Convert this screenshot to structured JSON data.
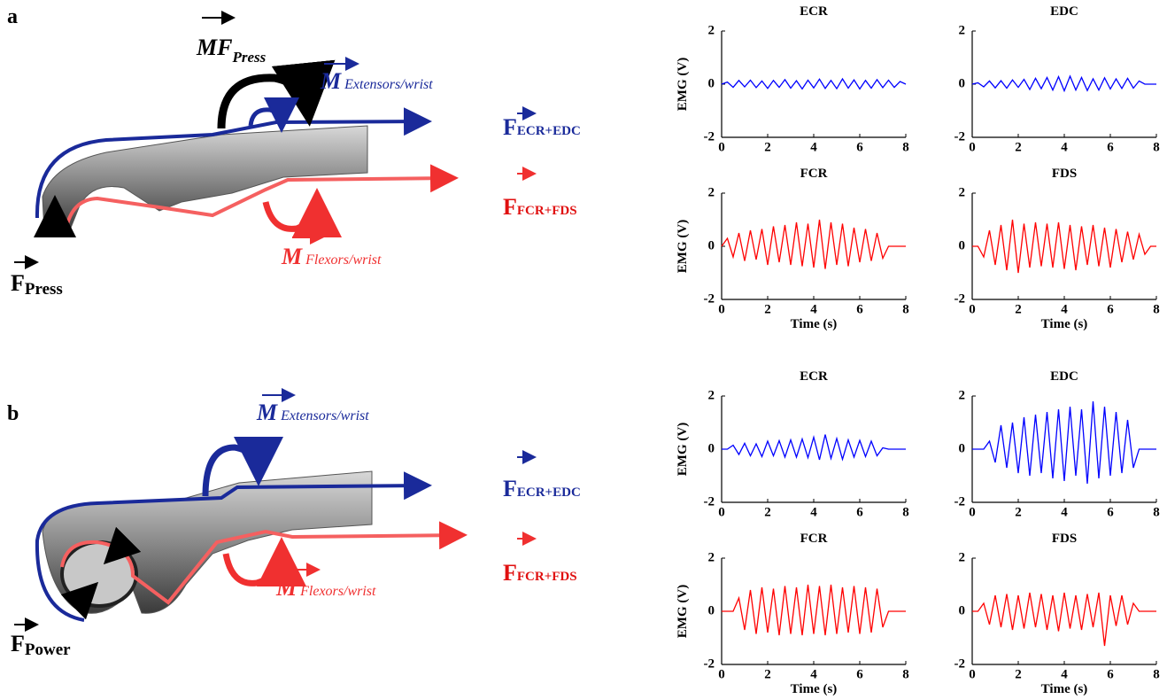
{
  "diagrams": [
    {
      "label": "a",
      "moment_main": {
        "symbol": "M",
        "subscript": "F",
        "sub_subscript": "Press"
      },
      "moment_extensors": {
        "symbol": "M",
        "subscript": "Extensors/wrist"
      },
      "force_extensors": {
        "symbol": "F",
        "subscript": "ECR+EDC"
      },
      "force_flexors": {
        "symbol": "F",
        "subscript": "FCR+FDS"
      },
      "moment_flexors": {
        "symbol": "M",
        "subscript": "Flexors/wrist"
      },
      "external_force": {
        "symbol": "F",
        "subscript": "Press"
      }
    },
    {
      "label": "b",
      "moment_extensors": {
        "symbol": "M",
        "subscript": "Extensors/wrist"
      },
      "force_extensors": {
        "symbol": "F",
        "subscript": "ECR+EDC"
      },
      "force_flexors": {
        "symbol": "F",
        "subscript": "FCR+FDS"
      },
      "moment_flexors": {
        "symbol": "M",
        "subscript": "Flexors/wrist"
      },
      "external_force": {
        "symbol": "F",
        "subscript": "Power"
      }
    }
  ],
  "chart_data": [
    {
      "type": "line",
      "title": "ECR",
      "ylabel": "EMG (V)",
      "color": "#0000ff",
      "x": [
        0,
        0.25,
        0.5,
        0.75,
        1,
        1.25,
        1.5,
        1.75,
        2,
        2.25,
        2.5,
        2.75,
        3,
        3.25,
        3.5,
        3.75,
        4,
        4.25,
        4.5,
        4.75,
        5,
        5.25,
        5.5,
        5.75,
        6,
        6.25,
        6.5,
        6.75,
        7,
        7.25,
        7.5,
        7.75,
        8
      ],
      "values": [
        0,
        0.08,
        -0.12,
        0.14,
        -0.1,
        0.15,
        -0.13,
        0.12,
        -0.16,
        0.14,
        -0.12,
        0.17,
        -0.15,
        0.13,
        -0.18,
        0.15,
        -0.14,
        0.19,
        -0.16,
        0.14,
        -0.17,
        0.2,
        -0.15,
        0.16,
        -0.18,
        0.14,
        -0.15,
        0.17,
        -0.13,
        0.15,
        -0.12,
        0.1,
        0
      ],
      "xlim": [
        0,
        8
      ],
      "ylim": [
        -2,
        2
      ],
      "xticks": [
        0,
        2,
        4,
        6,
        8
      ],
      "yticks": [
        -2,
        0,
        2
      ]
    },
    {
      "type": "line",
      "title": "EDC",
      "color": "#0000ff",
      "x": [
        0,
        0.25,
        0.5,
        0.75,
        1,
        1.25,
        1.5,
        1.75,
        2,
        2.25,
        2.5,
        2.75,
        3,
        3.25,
        3.5,
        3.75,
        4,
        4.25,
        4.5,
        4.75,
        5,
        5.25,
        5.5,
        5.75,
        6,
        6.25,
        6.5,
        6.75,
        7,
        7.25,
        7.5,
        7.75,
        8
      ],
      "values": [
        0,
        0.05,
        -0.1,
        0.12,
        -0.14,
        0.13,
        -0.15,
        0.16,
        -0.12,
        0.18,
        -0.2,
        0.22,
        -0.17,
        0.25,
        -0.22,
        0.28,
        -0.25,
        0.3,
        -0.22,
        0.25,
        -0.24,
        0.2,
        -0.22,
        0.24,
        -0.18,
        0.2,
        -0.16,
        0.22,
        -0.15,
        0.12,
        0,
        0,
        0
      ],
      "xlim": [
        0,
        8
      ],
      "ylim": [
        -2,
        2
      ],
      "xticks": [
        0,
        2,
        4,
        6,
        8
      ],
      "yticks": [
        -2,
        0,
        2
      ]
    },
    {
      "type": "line",
      "title": "FCR",
      "ylabel": "EMG (V)",
      "xlabel": "Time (s)",
      "color": "#ff0000",
      "x": [
        0,
        0.25,
        0.5,
        0.75,
        1,
        1.25,
        1.5,
        1.75,
        2,
        2.25,
        2.5,
        2.75,
        3,
        3.25,
        3.5,
        3.75,
        4,
        4.25,
        4.5,
        4.75,
        5,
        5.25,
        5.5,
        5.75,
        6,
        6.25,
        6.5,
        6.75,
        7,
        7.25,
        7.5,
        7.75,
        8
      ],
      "values": [
        0,
        0.3,
        -0.4,
        0.5,
        -0.55,
        0.6,
        -0.5,
        0.65,
        -0.7,
        0.75,
        -0.6,
        0.8,
        -0.7,
        0.9,
        -0.75,
        0.85,
        -0.8,
        1.0,
        -0.85,
        0.9,
        -0.7,
        0.85,
        -0.75,
        0.7,
        -0.6,
        0.65,
        -0.55,
        0.5,
        -0.45,
        0,
        0,
        0,
        0
      ],
      "xlim": [
        0,
        8
      ],
      "ylim": [
        -2,
        2
      ],
      "xticks": [
        0,
        2,
        4,
        6,
        8
      ],
      "yticks": [
        -2,
        0,
        2
      ]
    },
    {
      "type": "line",
      "title": "FDS",
      "xlabel": "Time (s)",
      "color": "#ff0000",
      "x": [
        0,
        0.25,
        0.5,
        0.75,
        1,
        1.25,
        1.5,
        1.75,
        2,
        2.25,
        2.5,
        2.75,
        3,
        3.25,
        3.5,
        3.75,
        4,
        4.25,
        4.5,
        4.75,
        5,
        5.25,
        5.5,
        5.75,
        6,
        6.25,
        6.5,
        6.75,
        7,
        7.25,
        7.5,
        7.75,
        8
      ],
      "values": [
        0,
        0,
        -0.4,
        0.6,
        -0.7,
        0.8,
        -0.9,
        1.0,
        -1.0,
        0.85,
        -0.8,
        0.9,
        -0.75,
        0.85,
        -0.8,
        0.9,
        -0.85,
        0.8,
        -0.9,
        0.75,
        -0.7,
        0.8,
        -0.75,
        0.7,
        -0.8,
        0.65,
        -0.6,
        0.55,
        -0.5,
        0.45,
        -0.3,
        0,
        0
      ],
      "xlim": [
        0,
        8
      ],
      "ylim": [
        -2,
        2
      ],
      "xticks": [
        0,
        2,
        4,
        6,
        8
      ],
      "yticks": [
        -2,
        0,
        2
      ]
    },
    {
      "type": "line",
      "title": "ECR",
      "ylabel": "EMG (V)",
      "color": "#0000ff",
      "x": [
        0,
        0.25,
        0.5,
        0.75,
        1,
        1.25,
        1.5,
        1.75,
        2,
        2.25,
        2.5,
        2.75,
        3,
        3.25,
        3.5,
        3.75,
        4,
        4.25,
        4.5,
        4.75,
        5,
        5.25,
        5.5,
        5.75,
        6,
        6.25,
        6.5,
        6.75,
        7,
        7.25,
        7.5,
        7.75,
        8
      ],
      "values": [
        0,
        0,
        0.15,
        -0.2,
        0.22,
        -0.25,
        0.2,
        -0.28,
        0.3,
        -0.25,
        0.32,
        -0.3,
        0.35,
        -0.3,
        0.38,
        -0.32,
        0.45,
        -0.4,
        0.55,
        -0.35,
        0.4,
        -0.38,
        0.35,
        -0.3,
        0.33,
        -0.28,
        0.3,
        -0.25,
        0.05,
        0,
        0,
        0,
        0
      ],
      "xlim": [
        0,
        8
      ],
      "ylim": [
        -2,
        2
      ],
      "xticks": [
        0,
        2,
        4,
        6,
        8
      ],
      "yticks": [
        -2,
        0,
        2
      ]
    },
    {
      "type": "line",
      "title": "EDC",
      "color": "#0000ff",
      "x": [
        0,
        0.25,
        0.5,
        0.75,
        1,
        1.25,
        1.5,
        1.75,
        2,
        2.25,
        2.5,
        2.75,
        3,
        3.25,
        3.5,
        3.75,
        4,
        4.25,
        4.5,
        4.75,
        5,
        5.25,
        5.5,
        5.75,
        6,
        6.25,
        6.5,
        6.75,
        7,
        7.25,
        7.5,
        7.75,
        8
      ],
      "values": [
        0,
        0,
        0,
        0.3,
        -0.5,
        0.9,
        -0.7,
        1.0,
        -0.9,
        1.2,
        -1.0,
        1.3,
        -0.9,
        1.4,
        -1.1,
        1.5,
        -1.2,
        1.6,
        -1.0,
        1.5,
        -1.3,
        1.8,
        -1.1,
        1.6,
        -1.0,
        1.4,
        -0.9,
        1.1,
        -0.7,
        0,
        0,
        0,
        0
      ],
      "xlim": [
        0,
        8
      ],
      "ylim": [
        -2,
        2
      ],
      "xticks": [
        0,
        2,
        4,
        6,
        8
      ],
      "yticks": [
        -2,
        0,
        2
      ]
    },
    {
      "type": "line",
      "title": "FCR",
      "ylabel": "EMG (V)",
      "xlabel": "Time (s)",
      "color": "#ff0000",
      "x": [
        0,
        0.25,
        0.5,
        0.75,
        1,
        1.25,
        1.5,
        1.75,
        2,
        2.25,
        2.5,
        2.75,
        3,
        3.25,
        3.5,
        3.75,
        4,
        4.25,
        4.5,
        4.75,
        5,
        5.25,
        5.5,
        5.75,
        6,
        6.25,
        6.5,
        6.75,
        7,
        7.25,
        7.5,
        7.75,
        8
      ],
      "values": [
        0,
        0,
        0,
        0.5,
        -0.7,
        0.8,
        -0.85,
        0.9,
        -0.8,
        0.85,
        -0.9,
        0.95,
        -0.85,
        0.9,
        -0.9,
        1.0,
        -0.85,
        0.95,
        -0.9,
        1.0,
        -0.85,
        0.9,
        -0.8,
        0.95,
        -0.85,
        0.9,
        -0.8,
        0.85,
        -0.6,
        0,
        0,
        0,
        0
      ],
      "xlim": [
        0,
        8
      ],
      "ylim": [
        -2,
        2
      ],
      "xticks": [
        0,
        2,
        4,
        6,
        8
      ],
      "yticks": [
        -2,
        0,
        2
      ]
    },
    {
      "type": "line",
      "title": "FDS",
      "xlabel": "Time (s)",
      "color": "#ff0000",
      "x": [
        0,
        0.25,
        0.5,
        0.75,
        1,
        1.25,
        1.5,
        1.75,
        2,
        2.25,
        2.5,
        2.75,
        3,
        3.25,
        3.5,
        3.75,
        4,
        4.25,
        4.5,
        4.75,
        5,
        5.25,
        5.5,
        5.75,
        6,
        6.25,
        6.5,
        6.75,
        7,
        7.25,
        7.5,
        7.75,
        8
      ],
      "values": [
        0,
        0,
        0.3,
        -0.5,
        0.6,
        -0.6,
        0.65,
        -0.7,
        0.6,
        -0.65,
        0.7,
        -0.6,
        0.65,
        -0.7,
        0.6,
        -0.75,
        0.7,
        -0.65,
        0.6,
        -0.7,
        0.65,
        -0.6,
        0.7,
        -1.3,
        0.6,
        -0.55,
        0.6,
        -0.5,
        0.3,
        0,
        0,
        0,
        0
      ],
      "xlim": [
        0,
        8
      ],
      "ylim": [
        -2,
        2
      ],
      "xticks": [
        0,
        2,
        4,
        6,
        8
      ],
      "yticks": [
        -2,
        0,
        2
      ]
    }
  ]
}
